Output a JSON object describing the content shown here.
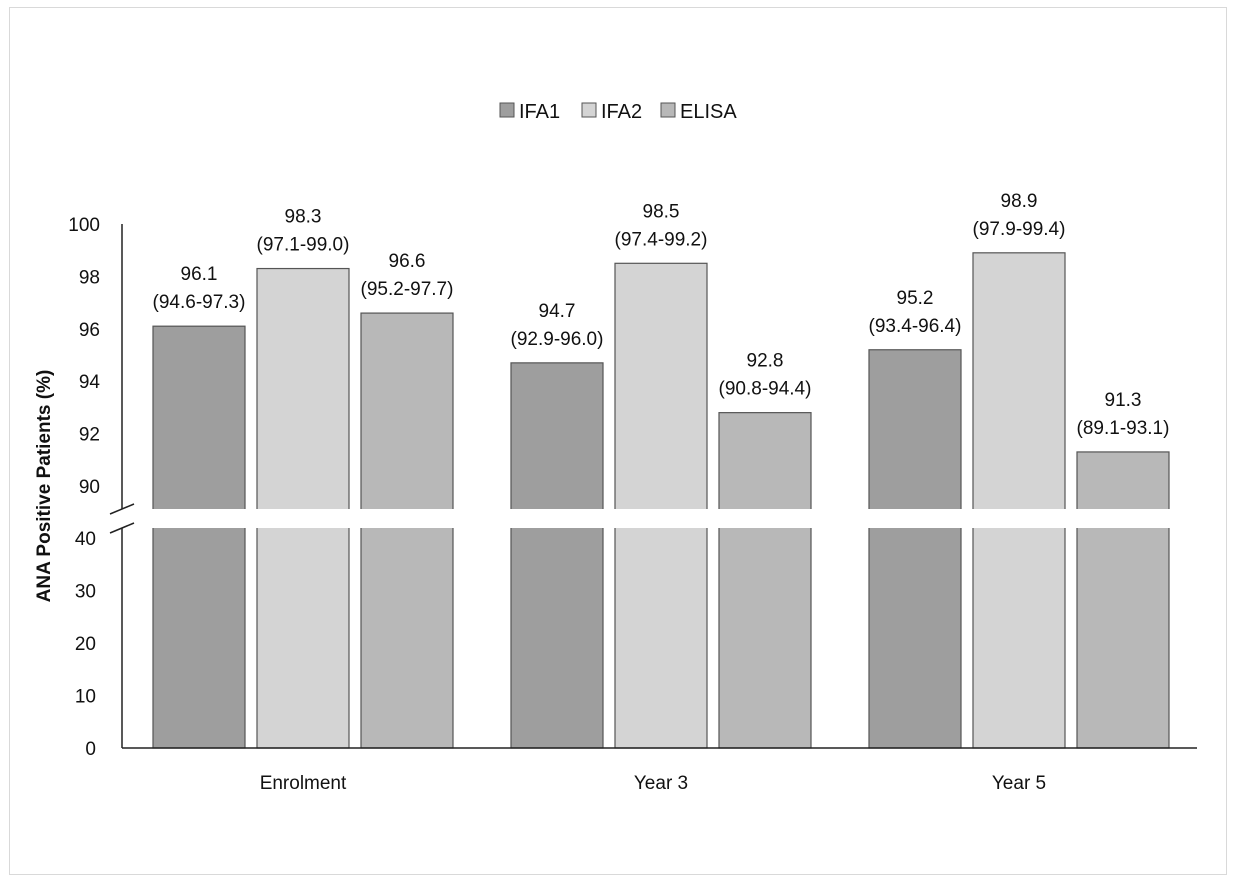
{
  "chart_data": {
    "type": "bar",
    "ylabel": "ANA Positive Patients (%)",
    "xlabel": "",
    "categories": [
      "Enrolment",
      "Year 3",
      "Year 5"
    ],
    "series": [
      {
        "name": "IFA1",
        "color": "#9e9e9e",
        "values": [
          96.1,
          94.7,
          95.2
        ],
        "labels": [
          "96.1",
          "94.7",
          "95.2"
        ],
        "ci": [
          "(94.6-97.3)",
          "(92.9-96.0)",
          "(93.4-96.4)"
        ]
      },
      {
        "name": "IFA2",
        "color": "#d4d4d4",
        "values": [
          98.3,
          98.5,
          98.9
        ],
        "labels": [
          "98.3",
          "98.5",
          "98.9"
        ],
        "ci": [
          "(97.1-99.0)",
          "(97.4-99.2)",
          "(97.9-99.4)"
        ]
      },
      {
        "name": "ELISA",
        "color": "#b8b8b8",
        "values": [
          96.6,
          92.8,
          91.3
        ],
        "labels": [
          "96.6",
          "92.8",
          "91.3"
        ],
        "ci": [
          "(95.2-97.7)",
          "(90.8-94.4)",
          "(89.1-93.1)"
        ]
      }
    ],
    "axis_break": {
      "lower_range": [
        0,
        40
      ],
      "upper_range": [
        90,
        100
      ]
    },
    "lower_ticks": [
      "0",
      "10",
      "20",
      "30",
      "40"
    ],
    "upper_ticks": [
      "90",
      "92",
      "94",
      "96",
      "98",
      "100"
    ],
    "legend_position": "top-center",
    "grid": false
  }
}
